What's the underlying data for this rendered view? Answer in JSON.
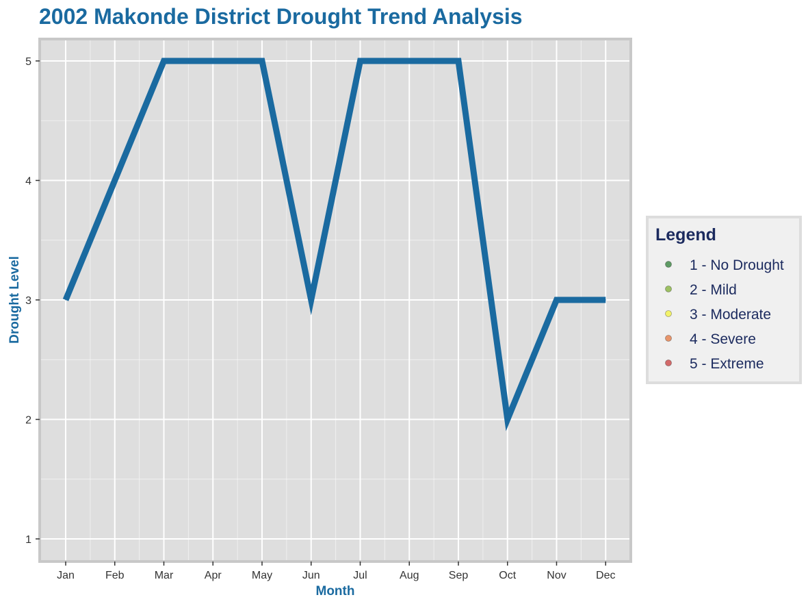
{
  "colors": {
    "title": "#1A6AA0",
    "axis_title": "#1A6AA0",
    "line": "#1A6AA0",
    "panel_bg": "#DEDEDE",
    "panel_border": "#C8C8C8",
    "grid": "#FFFFFF",
    "legend_bg": "#F0F0F0",
    "legend_border": "#DDDDDD",
    "legend_text": "#1B2A5E"
  },
  "chart_data": {
    "type": "line",
    "title": "2002 Makonde District Drought Trend Analysis",
    "xlabel": "Month",
    "ylabel": "Drought Level",
    "categories": [
      "Jan",
      "Feb",
      "Mar",
      "Apr",
      "May",
      "Jun",
      "Jul",
      "Aug",
      "Sep",
      "Oct",
      "Nov",
      "Dec"
    ],
    "values": [
      3,
      4,
      5,
      5,
      5,
      3,
      5,
      5,
      5,
      2,
      3,
      3
    ],
    "ylim": [
      1,
      5
    ],
    "yticks": [
      "1",
      "2",
      "3",
      "4",
      "5"
    ],
    "grid": true,
    "legend": {
      "title": "Legend",
      "position": "right",
      "items": [
        {
          "label": "1 - No Drought",
          "color": "#5E9A64"
        },
        {
          "label": "2 - Mild",
          "color": "#9DC163"
        },
        {
          "label": "3 - Moderate",
          "color": "#F2F26A"
        },
        {
          "label": "4 - Severe",
          "color": "#E8956B"
        },
        {
          "label": "5 - Extreme",
          "color": "#D36A6A"
        }
      ]
    }
  }
}
